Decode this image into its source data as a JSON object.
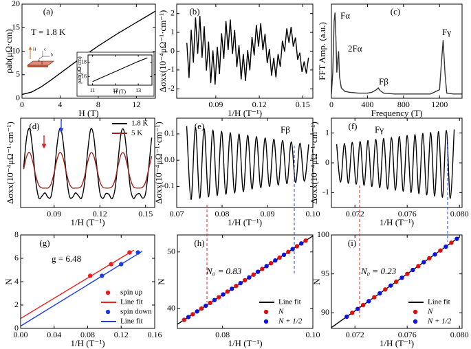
{
  "chart_data": [
    {
      "type": "line",
      "panel_label": "(a)",
      "xlabel": "H (T)",
      "ylabel": "ρab(μΩ·cm)",
      "xlim": [
        0,
        14
      ],
      "ylim": [
        0,
        20
      ],
      "xticks": [
        0,
        4,
        8,
        12
      ],
      "yticks": [
        0,
        5,
        10,
        15,
        20
      ],
      "annotations": [
        "T = 1.8 K"
      ],
      "schematic_labels": [
        "H",
        "c",
        "b",
        "a",
        "I"
      ],
      "series": [
        {
          "color": "#000000",
          "x": [
            0,
            1,
            2,
            3,
            4,
            5,
            6,
            7,
            8,
            9,
            10,
            11,
            12,
            13,
            14
          ],
          "values": [
            0.8,
            1.3,
            2.4,
            3.8,
            5.3,
            6.8,
            8.3,
            9.7,
            11.1,
            12.4,
            13.7,
            14.9,
            16.1,
            17.3,
            18.5
          ]
        }
      ],
      "inset": {
        "xlabel": "H (T)",
        "ylabel": "ρab(μΩ·cm)",
        "xlim": [
          10.8,
          13.6
        ],
        "ylim": [
          14.8,
          19
        ],
        "xticks": [
          11,
          12,
          13
        ],
        "yticks": [
          16,
          18
        ],
        "series": [
          {
            "color": "#000000",
            "x": [
              11,
              11.5,
              12,
              12.5,
              13,
              13.4
            ],
            "values": [
              15.3,
              16.0,
              16.7,
              17.4,
              18.1,
              18.6
            ]
          }
        ]
      }
    },
    {
      "type": "line",
      "panel_label": "(b)",
      "xlabel": "1/H (T⁻¹)",
      "ylabel": "Δσxx(10⁻⁴μΩ⁻¹·cm⁻¹)",
      "xlim": [
        0.063,
        0.157
      ],
      "ylim": [
        -2.5,
        2.5
      ],
      "xticks": [
        0.09,
        0.12,
        0.15
      ],
      "yticks": [
        -2,
        -1,
        0,
        1,
        2
      ],
      "series": [
        {
          "color": "#000000",
          "x": [
            0.07,
            0.0715,
            0.073,
            0.0745,
            0.076,
            0.0775,
            0.079,
            0.0805,
            0.082,
            0.0835,
            0.085,
            0.0865,
            0.088,
            0.0895,
            0.091,
            0.0925,
            0.094,
            0.0955,
            0.097,
            0.0985,
            0.1,
            0.1015,
            0.103,
            0.1045,
            0.106,
            0.1075,
            0.109,
            0.1105,
            0.112,
            0.1135,
            0.115,
            0.1165,
            0.118,
            0.1195,
            0.121,
            0.1225,
            0.124,
            0.1255,
            0.127,
            0.1285,
            0.13,
            0.1315,
            0.133,
            0.1345,
            0.136,
            0.1375,
            0.139,
            0.1405,
            0.142,
            0.1435,
            0.145,
            0.1465,
            0.148,
            0.1495,
            0.151,
            0.1525,
            0.154
          ],
          "values": [
            0.44,
            -1.42,
            1.14,
            -0.61,
            1.79,
            -0.14,
            1.88,
            -0.34,
            1.32,
            -1.03,
            0.51,
            -1.7,
            0.04,
            -1.78,
            0.24,
            -1.22,
            0.95,
            -0.41,
            1.6,
            0.06,
            1.68,
            -0.15,
            1.12,
            -0.84,
            0.31,
            -1.5,
            -0.15,
            -1.58,
            0.05,
            -1.02,
            0.75,
            -0.22,
            1.4,
            0.25,
            1.48,
            0.05,
            0.93,
            -0.64,
            0.12,
            -1.3,
            -0.35,
            -1.39,
            -0.15,
            -0.83,
            0.55,
            -0.02,
            1.21,
            0.45,
            1.29,
            0.25,
            0.73,
            -0.45,
            -0.08,
            -1.11,
            -0.55,
            -1.19,
            -0.34
          ]
        }
      ]
    },
    {
      "type": "line",
      "panel_label": "(c)",
      "xlabel": "Frequency (T)",
      "ylabel": "FFT Amp. (a.u.)",
      "xlim": [
        0,
        1450
      ],
      "ylim": [
        0,
        1.1
      ],
      "xticks": [
        0,
        400,
        800,
        1200
      ],
      "annotations": [
        "Fα",
        "2Fα",
        "Fβ",
        "Fγ"
      ],
      "series": [
        {
          "color": "#333333",
          "x": [
            0,
            15,
            30,
            40,
            50,
            60,
            70,
            80,
            90,
            110,
            150,
            200,
            300,
            400,
            450,
            500,
            520,
            540,
            580,
            700,
            900,
            1100,
            1200,
            1220,
            1240,
            1260,
            1280,
            1350,
            1450
          ],
          "values": [
            0.05,
            0.3,
            0.9,
            1.0,
            0.7,
            0.3,
            0.45,
            0.55,
            0.25,
            0.12,
            0.08,
            0.07,
            0.06,
            0.06,
            0.07,
            0.1,
            0.12,
            0.09,
            0.06,
            0.05,
            0.05,
            0.05,
            0.1,
            0.4,
            0.68,
            0.3,
            0.06,
            0.05,
            0.05
          ]
        }
      ]
    },
    {
      "type": "line",
      "panel_label": "(d)",
      "xlabel": "1/H (T⁻¹)",
      "ylabel": "Δσxx(10⁻⁴μΩ⁻¹·cm⁻¹)",
      "xlim": [
        0.068,
        0.156
      ],
      "ylim": [
        -1.0,
        1.75
      ],
      "xticks": [
        0.09,
        0.12,
        0.15
      ],
      "smooth": true,
      "legend": "upper right",
      "series": [
        {
          "name": "1.8 K",
          "color": "#000000",
          "x": [
            0.07,
            0.072,
            0.074,
            0.076,
            0.078,
            0.08,
            0.082,
            0.084,
            0.086,
            0.088,
            0.09,
            0.092,
            0.094,
            0.096,
            0.098,
            0.1,
            0.102,
            0.104,
            0.106,
            0.108,
            0.11,
            0.112,
            0.114,
            0.116,
            0.118,
            0.12,
            0.122,
            0.124,
            0.126,
            0.128,
            0.13,
            0.132,
            0.134,
            0.136,
            0.138,
            0.14,
            0.142,
            0.144,
            0.146,
            0.148,
            0.15,
            0.152,
            0.154
          ],
          "values": [
            0.23,
            1.17,
            1.42,
            0.74,
            -0.22,
            -0.71,
            -0.65,
            -0.55,
            -0.69,
            -0.65,
            -0.02,
            0.96,
            1.45,
            0.98,
            0,
            -0.65,
            -0.69,
            -0.55,
            -0.64,
            -0.71,
            -0.24,
            0.72,
            1.41,
            1.18,
            0.25,
            -0.54,
            -0.72,
            -0.57,
            -0.6,
            -0.73,
            -0.42,
            0.47,
            1.31,
            1.33,
            0.51,
            -0.4,
            -0.72,
            -0.61,
            -0.57,
            -0.71,
            -0.57,
            0.21,
            1.15
          ]
        },
        {
          "name": "5 K",
          "color": "#a0201c",
          "x": [
            0.07,
            0.072,
            0.074,
            0.076,
            0.078,
            0.08,
            0.082,
            0.084,
            0.086,
            0.088,
            0.09,
            0.092,
            0.094,
            0.096,
            0.098,
            0.1,
            0.102,
            0.104,
            0.106,
            0.108,
            0.11,
            0.112,
            0.114,
            0.116,
            0.118,
            0.12,
            0.122,
            0.124,
            0.126,
            0.128,
            0.13,
            0.132,
            0.134,
            0.136,
            0.138,
            0.14,
            0.142,
            0.144,
            0.146,
            0.148,
            0.15,
            0.152,
            0.154
          ],
          "values": [
            0.18,
            0.58,
            0.69,
            0.4,
            -0.03,
            -0.32,
            -0.4,
            -0.4,
            -0.4,
            -0.28,
            0.07,
            0.5,
            0.7,
            0.5,
            0.07,
            -0.27,
            -0.4,
            -0.4,
            -0.4,
            -0.33,
            -0.04,
            0.4,
            0.68,
            0.59,
            0.19,
            -0.2,
            -0.38,
            -0.4,
            -0.4,
            -0.36,
            -0.14,
            0.29,
            0.64,
            0.65,
            0.3,
            -0.12,
            -0.36,
            -0.4,
            -0.4,
            -0.38,
            -0.22,
            0.17,
            0.58
          ]
        }
      ]
    },
    {
      "type": "line",
      "panel_label": "(e)",
      "xlabel": "1/H (T⁻¹)",
      "ylabel": "Δσxx(10⁻⁴μΩ⁻¹·cm⁻¹)",
      "xlim": [
        0.07,
        0.1
      ],
      "ylim": [
        -0.18,
        0.16
      ],
      "smooth": true,
      "annotations": [
        "Fβ"
      ],
      "xticks": [
        0.07,
        0.08,
        0.09,
        {
          "value": 0.1,
          "label": "0.10"
        }
      ],
      "yticks": [
        -0.1,
        {
          "value": 0,
          "label": "0.0"
        },
        0.1
      ],
      "series": [
        {
          "color": "#000000",
          "x": [
            0.0722,
            0.07316,
            0.07412,
            0.07508,
            0.07604,
            0.077,
            0.07796,
            0.07892,
            0.07988,
            0.08084,
            0.0818,
            0.08276,
            0.08372,
            0.08468,
            0.08564,
            0.0866,
            0.08756,
            0.08852,
            0.08948,
            0.09044,
            0.0914,
            0.09236,
            0.09332,
            0.09428,
            0.09524,
            0.0962,
            0.09716,
            0.09812,
            0.09908
          ],
          "values": [
            0.13,
            -0.15,
            0.125,
            -0.145,
            0.12,
            -0.14,
            0.115,
            -0.135,
            0.11,
            -0.13,
            0.105,
            -0.125,
            0.1,
            -0.12,
            0.095,
            -0.11,
            0.09,
            -0.105,
            0.085,
            -0.1,
            0.08,
            -0.095,
            0.075,
            -0.09,
            0.07,
            -0.085,
            0.065,
            -0.08,
            0.06
          ]
        }
      ]
    },
    {
      "type": "line",
      "panel_label": "(f)",
      "xlabel": "1/H (T⁻¹)",
      "ylabel": "Δσxx(10⁻⁴μΩ⁻¹·cm⁻¹)",
      "xlim": [
        0.0702,
        0.0802
      ],
      "ylim": [
        -1.5,
        1.5
      ],
      "smooth": true,
      "annotations": [
        "Fγ"
      ],
      "xticks": [
        0.072,
        0.076,
        {
          "value": 0.08,
          "label": "0.080"
        }
      ],
      "yticks": [
        -1,
        0,
        1
      ],
      "series": [
        {
          "color": "#000000",
          "x": [
            0.0706,
            0.0709,
            0.0712,
            0.0715,
            0.0718,
            0.0721,
            0.0724,
            0.0727,
            0.073,
            0.0733,
            0.0736,
            0.0739,
            0.0742,
            0.0745,
            0.0748,
            0.0751,
            0.0754,
            0.0757,
            0.076,
            0.0763,
            0.0766,
            0.0769,
            0.0772,
            0.0775,
            0.0778,
            0.0781,
            0.0784,
            0.0787,
            0.079,
            0.0793,
            0.0796
          ],
          "values": [
            0.62,
            -0.65,
            0.65,
            -0.69,
            0.69,
            -0.72,
            0.72,
            -0.76,
            0.75,
            -0.8,
            0.79,
            -0.84,
            0.82,
            -0.88,
            0.85,
            -0.92,
            0.89,
            -0.96,
            0.92,
            -1.0,
            0.95,
            -1.04,
            0.99,
            -1.08,
            1.02,
            -1.12,
            1.05,
            -1.16,
            1.09,
            -1.2,
            1.12
          ]
        }
      ]
    },
    {
      "type": "scatter",
      "panel_label": "(g)",
      "xlabel": "1/H (T⁻¹)",
      "ylabel": "N",
      "xlim": [
        0,
        0.16
      ],
      "ylim": [
        0,
        8
      ],
      "legend": "lower right",
      "annotations": [
        "g = 6.48"
      ],
      "xticks": [
        {
          "value": 0,
          "label": "0.00"
        },
        0.04,
        0.08,
        0.12,
        0.16
      ],
      "yticks": [
        0,
        2,
        4,
        6,
        8
      ],
      "series": [
        {
          "name": "spin up",
          "type": "scatter",
          "color": "#ee1c1c",
          "x": [
            0.083,
            0.108,
            0.13
          ],
          "values": [
            4.5,
            5.5,
            6.5
          ]
        },
        {
          "name": "Line fit",
          "type": "line",
          "color": "#ee1c1c",
          "x": [
            0,
            0.135
          ],
          "values": [
            0.85,
            6.7
          ]
        },
        {
          "name": "spin down",
          "type": "scatter",
          "color": "#1c3cee",
          "x": [
            0.097,
            0.12,
            0.14
          ],
          "values": [
            4.5,
            5.5,
            6.5
          ]
        },
        {
          "name": "Line fit",
          "type": "line",
          "color": "#1c3cee",
          "x": [
            0,
            0.145
          ],
          "values": [
            0.2,
            6.6
          ]
        }
      ]
    },
    {
      "type": "scatter",
      "panel_label": "(h)",
      "xlabel": "1/H (T⁻¹)",
      "ylabel": "N",
      "xlim": [
        0.07,
        0.1
      ],
      "ylim": [
        36.5,
        53
      ],
      "legend": "lower right",
      "annotations": [
        "N₀ = 0.83"
      ],
      "xticks": [
        0.08,
        {
          "value": 0.1,
          "label": "0.10"
        }
      ],
      "yticks": [
        40,
        50
      ],
      "series": [
        {
          "name": "Line fit",
          "type": "line",
          "color": "#000000",
          "x": [
            0.07,
            0.1
          ],
          "values": [
            37.23,
            52.83
          ]
        },
        {
          "name": "N",
          "type": "scatter",
          "color": "#dd1111",
          "x": [
            0.07148,
            0.0734,
            0.07533,
            0.07725,
            0.07917,
            0.0811,
            0.08302,
            0.08494,
            0.08687,
            0.08879,
            0.09071,
            0.09263,
            0.09456,
            0.09648,
            0.0984
          ],
          "values": [
            38,
            39,
            40,
            41,
            42,
            43,
            44,
            45,
            46,
            47,
            48,
            49,
            50,
            51,
            52
          ]
        },
        {
          "name": "N + 1/2",
          "type": "scatter",
          "color": "#1111dd",
          "x": [
            0.07244,
            0.07437,
            0.07629,
            0.07821,
            0.08013,
            0.08206,
            0.08398,
            0.0859,
            0.08783,
            0.08975,
            0.09167,
            0.0936,
            0.09552,
            0.09744
          ],
          "values": [
            38.5,
            39.5,
            40.5,
            41.5,
            42.5,
            43.5,
            44.5,
            45.5,
            46.5,
            47.5,
            48.5,
            49.5,
            50.5,
            51.5
          ]
        }
      ]
    },
    {
      "type": "scatter",
      "panel_label": "(i)",
      "xlabel": "1/H (T⁻¹)",
      "ylabel": "N",
      "xlim": [
        0.0702,
        0.0802
      ],
      "ylim": [
        88,
        100
      ],
      "legend": "lower right",
      "annotations": [
        "N₀ = 0.23"
      ],
      "xticks": [
        0.072,
        0.076,
        {
          "value": 0.08,
          "label": "0.080"
        }
      ],
      "yticks": [
        90,
        95,
        100
      ],
      "series": [
        {
          "name": "Line fit",
          "type": "line",
          "color": "#000000",
          "x": [
            0.0702,
            0.08
          ],
          "values": [
            88.11,
            99.74
          ]
        },
        {
          "name": "N",
          "type": "scatter",
          "color": "#dd1111",
          "x": [
            0.07179,
            0.07263,
            0.07348,
            0.07432,
            0.07516,
            0.07601,
            0.07685,
            0.07769,
            0.07854,
            0.07938
          ],
          "values": [
            90,
            91,
            92,
            93,
            94,
            95,
            96,
            97,
            98,
            99
          ]
        },
        {
          "name": "N + 1/2",
          "type": "scatter",
          "color": "#1111dd",
          "x": [
            0.07137,
            0.07221,
            0.07306,
            0.0739,
            0.07474,
            0.07559,
            0.07643,
            0.07727,
            0.07812,
            0.07896,
            0.0798
          ],
          "values": [
            89.5,
            90.5,
            91.5,
            92.5,
            93.5,
            94.5,
            95.5,
            96.5,
            97.5,
            98.5,
            99.5
          ]
        }
      ]
    }
  ]
}
